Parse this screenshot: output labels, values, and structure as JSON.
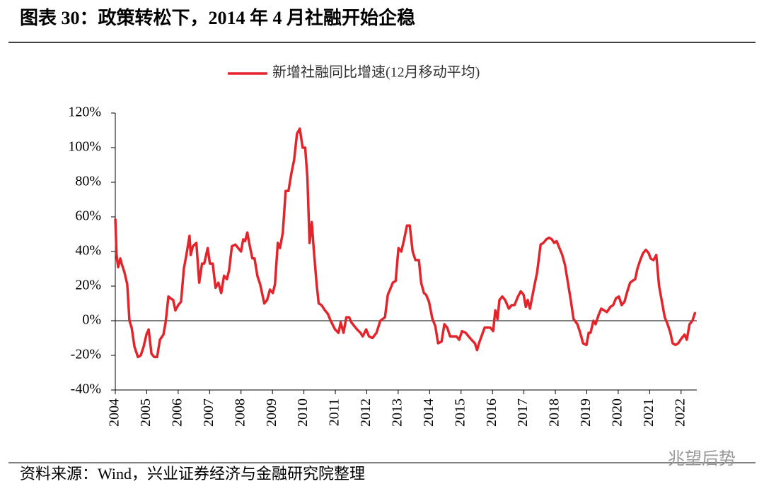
{
  "chart_data": {
    "type": "line",
    "title": "图表 30：政策转松下，2014 年 4 月社融开始企稳",
    "source": "资料来源：Wind，兴业证券经济与金融研究院整理",
    "watermark": "兆望后势",
    "x": [
      2004.0,
      2004.04,
      2004.09,
      2004.16,
      2004.2,
      2004.29,
      2004.38,
      2004.45,
      2004.52,
      2004.61,
      2004.72,
      2004.81,
      2004.9,
      2004.99,
      2005.06,
      2005.15,
      2005.24,
      2005.33,
      2005.42,
      2005.53,
      2005.6,
      2005.69,
      2005.75,
      2005.84,
      2005.91,
      2006.0,
      2006.09,
      2006.18,
      2006.27,
      2006.36,
      2006.4,
      2006.47,
      2006.58,
      2006.67,
      2006.76,
      2006.83,
      2006.94,
      2007.01,
      2007.1,
      2007.19,
      2007.28,
      2007.37,
      2007.46,
      2007.55,
      2007.62,
      2007.71,
      2007.82,
      2007.91,
      2008.0,
      2008.07,
      2008.13,
      2008.2,
      2008.27,
      2008.36,
      2008.43,
      2008.52,
      2008.61,
      2008.74,
      2008.83,
      2008.92,
      2009.01,
      2009.08,
      2009.17,
      2009.24,
      2009.33,
      2009.42,
      2009.51,
      2009.6,
      2009.69,
      2009.78,
      2009.87,
      2009.96,
      2010.04,
      2010.11,
      2010.18,
      2010.25,
      2010.31,
      2010.4,
      2010.47,
      2010.56,
      2010.67,
      2010.76,
      2010.85,
      2010.99,
      2011.1,
      2011.17,
      2011.26,
      2011.35,
      2011.44,
      2011.51,
      2011.6,
      2011.69,
      2011.8,
      2011.87,
      2011.98,
      2012.07,
      2012.18,
      2012.31,
      2012.43,
      2012.58,
      2012.67,
      2012.74,
      2012.83,
      2012.92,
      2013.01,
      2013.1,
      2013.19,
      2013.28,
      2013.37,
      2013.46,
      2013.55,
      2013.66,
      2013.73,
      2013.82,
      2013.89,
      2013.98,
      2014.09,
      2014.18,
      2014.27,
      2014.38,
      2014.47,
      2014.56,
      2014.65,
      2014.74,
      2014.85,
      2014.94,
      2015.03,
      2015.15,
      2015.24,
      2015.33,
      2015.44,
      2015.51,
      2015.57,
      2015.69,
      2015.75,
      2015.84,
      2015.93,
      2016.02,
      2016.09,
      2016.16,
      2016.22,
      2016.31,
      2016.4,
      2016.52,
      2016.61,
      2016.7,
      2016.81,
      2016.9,
      2016.99,
      2017.06,
      2017.12,
      2017.19,
      2017.33,
      2017.42,
      2017.53,
      2017.62,
      2017.71,
      2017.8,
      2017.89,
      2017.96,
      2018.04,
      2018.13,
      2018.22,
      2018.31,
      2018.4,
      2018.49,
      2018.58,
      2018.7,
      2018.79,
      2018.88,
      2018.99,
      2019.06,
      2019.12,
      2019.21,
      2019.28,
      2019.37,
      2019.46,
      2019.55,
      2019.64,
      2019.75,
      2019.84,
      2019.93,
      2020.02,
      2020.11,
      2020.2,
      2020.29,
      2020.38,
      2020.45,
      2020.54,
      2020.61,
      2020.7,
      2020.79,
      2020.88,
      2020.97,
      2021.03,
      2021.12,
      2021.21,
      2021.3,
      2021.39,
      2021.48,
      2021.57,
      2021.66,
      2021.73,
      2021.82,
      2021.91,
      2022.02,
      2022.11,
      2022.18,
      2022.27,
      2022.36,
      2022.45
    ],
    "series": [
      {
        "name": "新增社融同比增速(12月移动平均)",
        "color": "#e3242b",
        "values": [
          59,
          38,
          31,
          36,
          33,
          28,
          21,
          0,
          -4,
          -15,
          -21,
          -20,
          -15,
          -8,
          -5,
          -19,
          -21,
          -21,
          -11,
          -8,
          -1,
          14,
          13,
          12,
          6,
          9,
          11,
          30,
          39,
          49,
          38,
          43,
          45,
          22,
          33,
          33,
          42,
          33,
          33,
          19,
          22,
          16,
          26,
          24,
          29,
          43,
          44,
          42,
          40,
          47,
          46,
          51,
          44,
          36,
          36,
          26,
          21,
          10,
          12,
          18,
          16,
          21,
          45,
          42,
          51,
          75,
          75,
          85,
          93,
          108,
          111,
          100,
          100,
          83,
          45,
          57,
          42,
          22,
          10,
          9,
          6,
          4,
          0,
          -5,
          -7,
          -1,
          -7,
          2,
          2,
          -1,
          -3,
          -5,
          -7,
          -9,
          -5,
          -9,
          -10,
          -7,
          0,
          2,
          15,
          18,
          22,
          23,
          42,
          40,
          47,
          55,
          55,
          40,
          35,
          35,
          22,
          16,
          15,
          11,
          1,
          -3,
          -13,
          -12,
          -2,
          -4,
          -9,
          -9,
          -9,
          -11,
          -6,
          -7,
          -9,
          -11,
          -13,
          -17,
          -13,
          -7,
          -4,
          -4,
          -4,
          -6,
          6,
          1,
          12,
          14,
          12,
          7,
          9,
          9,
          14,
          17,
          15,
          8,
          12,
          7,
          20,
          28,
          44,
          45,
          47,
          48,
          47,
          45,
          46,
          42,
          38,
          32,
          22,
          12,
          1,
          -2,
          -7,
          -13,
          -14,
          -7,
          -7,
          0,
          -2,
          3,
          7,
          6,
          5,
          8,
          9,
          13,
          14,
          9,
          11,
          17,
          22,
          23,
          24,
          30,
          35,
          39,
          41,
          39,
          36,
          35,
          38,
          20,
          11,
          2,
          -2,
          -7,
          -13,
          -14,
          -13,
          -10,
          -8,
          -11,
          -2,
          0,
          5
        ]
      }
    ],
    "xlim": [
      2004,
      2022.5
    ],
    "xticks": [
      2004,
      2005,
      2006,
      2007,
      2008,
      2009,
      2010,
      2011,
      2012,
      2013,
      2014,
      2015,
      2016,
      2017,
      2018,
      2019,
      2020,
      2021,
      2022
    ],
    "ylim": [
      -40,
      120
    ],
    "yticks": [
      {
        "value": -40,
        "label": "-40%"
      },
      {
        "value": -20,
        "label": "-20%"
      },
      {
        "value": 0,
        "label": "0%"
      },
      {
        "value": 20,
        "label": "20%"
      },
      {
        "value": 40,
        "label": "40%"
      },
      {
        "value": 60,
        "label": "60%"
      },
      {
        "value": 80,
        "label": "80%"
      },
      {
        "value": 100,
        "label": "100%"
      },
      {
        "value": 120,
        "label": "120%"
      }
    ],
    "legend": "top"
  }
}
